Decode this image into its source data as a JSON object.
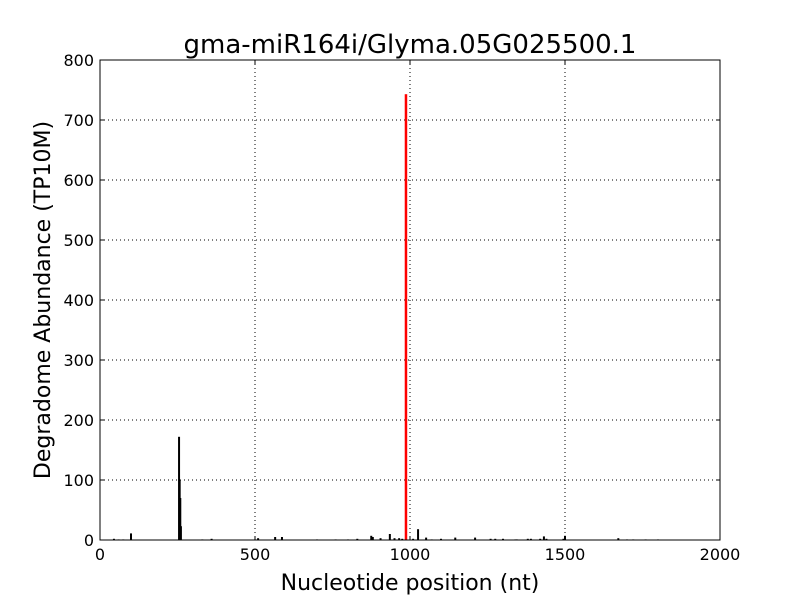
{
  "chart_data": {
    "type": "bar",
    "title": "gma-miR164i/Glyma.05G025500.1",
    "xlabel": "Nucleotide position (nt)",
    "ylabel": "Degradome Abundance (TP10M)",
    "xlim": [
      0,
      2000
    ],
    "ylim": [
      0,
      800
    ],
    "xticks": [
      0,
      500,
      1000,
      1500,
      2000
    ],
    "yticks": [
      0,
      100,
      200,
      300,
      400,
      500,
      600,
      700,
      800
    ],
    "grid": true,
    "series": [
      {
        "color": "#000000",
        "x": [
          45,
          60,
          75,
          100,
          255,
          257,
          259,
          261,
          330,
          360,
          510,
          565,
          587,
          700,
          760,
          800,
          830,
          875,
          880,
          905,
          935,
          950,
          965,
          975,
          1010,
          1026,
          1052,
          1070,
          1100,
          1146,
          1210,
          1260,
          1275,
          1300,
          1340,
          1345,
          1380,
          1390,
          1420,
          1432,
          1440,
          1495,
          1500,
          1672,
          1700,
          1720,
          1760,
          1800
        ],
        "values": [
          2,
          1,
          1,
          11,
          172,
          100,
          70,
          23,
          1,
          2,
          3,
          5,
          5,
          1,
          1,
          1,
          2,
          7,
          5,
          3,
          10,
          3,
          3,
          2,
          2,
          18,
          4,
          1,
          2,
          4,
          4,
          2,
          2,
          2,
          1,
          1,
          2,
          2,
          2,
          6,
          2,
          2,
          7,
          3,
          1,
          1,
          1,
          1
        ]
      },
      {
        "color": "#ff0000",
        "x": [
          987
        ],
        "values": [
          743
        ]
      }
    ]
  }
}
